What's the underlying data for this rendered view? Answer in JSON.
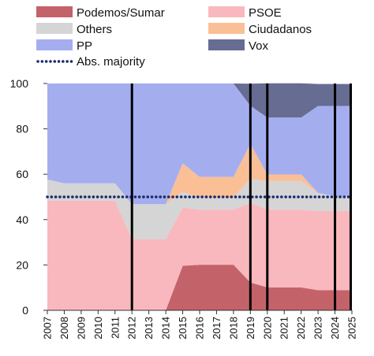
{
  "chart_data": {
    "type": "area",
    "x": [
      2007,
      2008,
      2009,
      2010,
      2011,
      2012,
      2013,
      2014,
      2015,
      2016,
      2017,
      2018,
      2019,
      2020,
      2021,
      2022,
      2023,
      2024,
      2025
    ],
    "x_tick_labels": [
      "2007",
      "2008",
      "2009",
      "2010",
      "2011",
      "2012",
      "2013",
      "2014",
      "2015",
      "2016",
      "2017",
      "2018",
      "2019",
      "2020",
      "2021",
      "2022",
      "2023",
      "2024",
      "2025"
    ],
    "ylim": [
      0,
      100
    ],
    "y_ticks": [
      0,
      20,
      40,
      60,
      80,
      100
    ],
    "y_tick_labels": [
      "0",
      "20",
      "40",
      "60",
      "80",
      "100"
    ],
    "stacked": true,
    "series": [
      {
        "name": "Podemos/Sumar",
        "color": "#c4626a",
        "values": [
          0,
          0,
          0,
          0,
          0,
          0,
          0,
          0,
          19.6,
          20.1,
          20.1,
          20.1,
          12.3,
          10.1,
          10.1,
          10.1,
          8.9,
          8.9,
          8.9
        ]
      },
      {
        "name": "PSOE",
        "color": "#f9b8bd",
        "values": [
          48.3,
          48.3,
          48.3,
          48.3,
          48.3,
          31.4,
          31.4,
          31.4,
          25.7,
          24.3,
          24.3,
          24.3,
          35.1,
          34.3,
          34.3,
          34.3,
          34.9,
          34.9,
          34.9
        ]
      },
      {
        "name": "Others",
        "color": "#d5d5d5",
        "values": [
          9.4,
          7.7,
          7.7,
          7.7,
          7.7,
          15.4,
          15.4,
          15.4,
          6.9,
          5.3,
          5.3,
          5.3,
          10.6,
          12.6,
          12.6,
          12.6,
          8.0,
          6.4,
          6.4
        ]
      },
      {
        "name": "Ciudadanos",
        "color": "#fbbf96",
        "values": [
          0,
          0,
          0,
          0,
          0,
          0,
          0,
          0,
          12.6,
          9.1,
          9.1,
          9.1,
          15.4,
          2.9,
          2.9,
          2.9,
          0,
          0,
          0
        ]
      },
      {
        "name": "PP",
        "color": "#a4aeef",
        "values": [
          42.3,
          44.0,
          44.0,
          44.0,
          44.0,
          53.2,
          53.2,
          53.2,
          35.2,
          41.2,
          41.2,
          41.2,
          16.8,
          25.1,
          25.1,
          25.1,
          38.3,
          39.9,
          39.9
        ]
      },
      {
        "name": "Vox",
        "color": "#666c92",
        "values": [
          0,
          0,
          0,
          0,
          0,
          0,
          0,
          0,
          0,
          0,
          0,
          0,
          9.7,
          15.1,
          15.1,
          15.1,
          9.7,
          9.7,
          9.7
        ]
      }
    ],
    "reference_line": {
      "name": "Abs. majority",
      "value": 50,
      "color": "#1a2a6c",
      "style": "dotted"
    },
    "vertical_lines": {
      "color": "#000000",
      "x": [
        2012,
        2019,
        2020,
        2024,
        2025
      ]
    },
    "grid": false,
    "legend": {
      "placement": "top",
      "columns": 2
    }
  }
}
